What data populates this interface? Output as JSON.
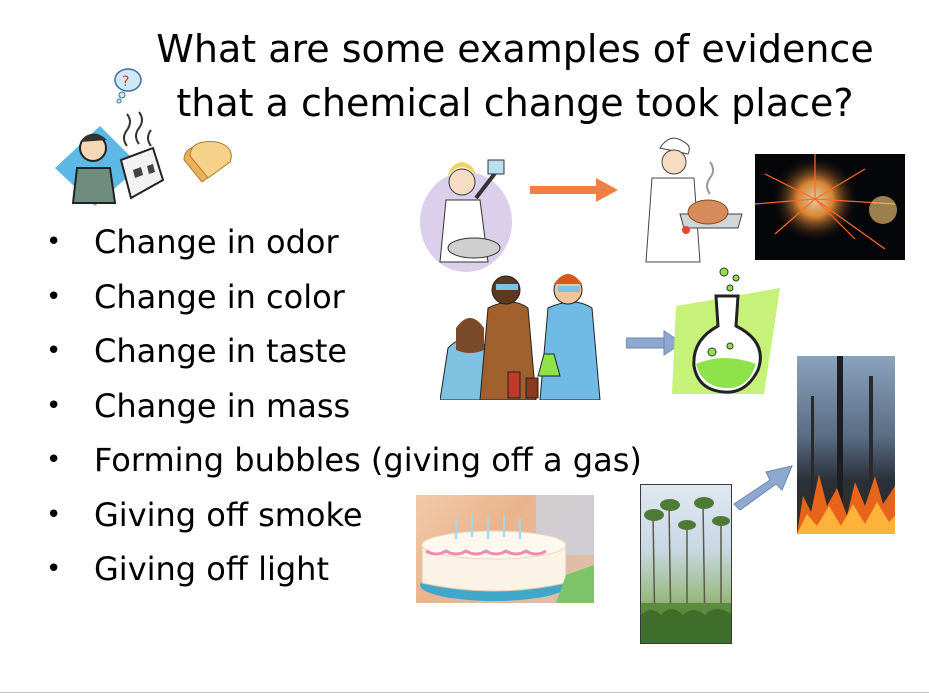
{
  "slide": {
    "title_line1": "What are some examples of evidence",
    "title_line2": "that a chemical change took place?",
    "bullets": [
      "Change in odor",
      "Change in color",
      "Change in taste",
      "Change in mass",
      "Forming bubbles (giving off a gas)",
      "Giving off smoke",
      "Giving off light"
    ]
  },
  "colors": {
    "arrow_orange": "#f07f45",
    "arrow_blue": "#8ea8cf",
    "flask_green": "#8ee34a",
    "flask_backdrop": "#c6f27a"
  }
}
